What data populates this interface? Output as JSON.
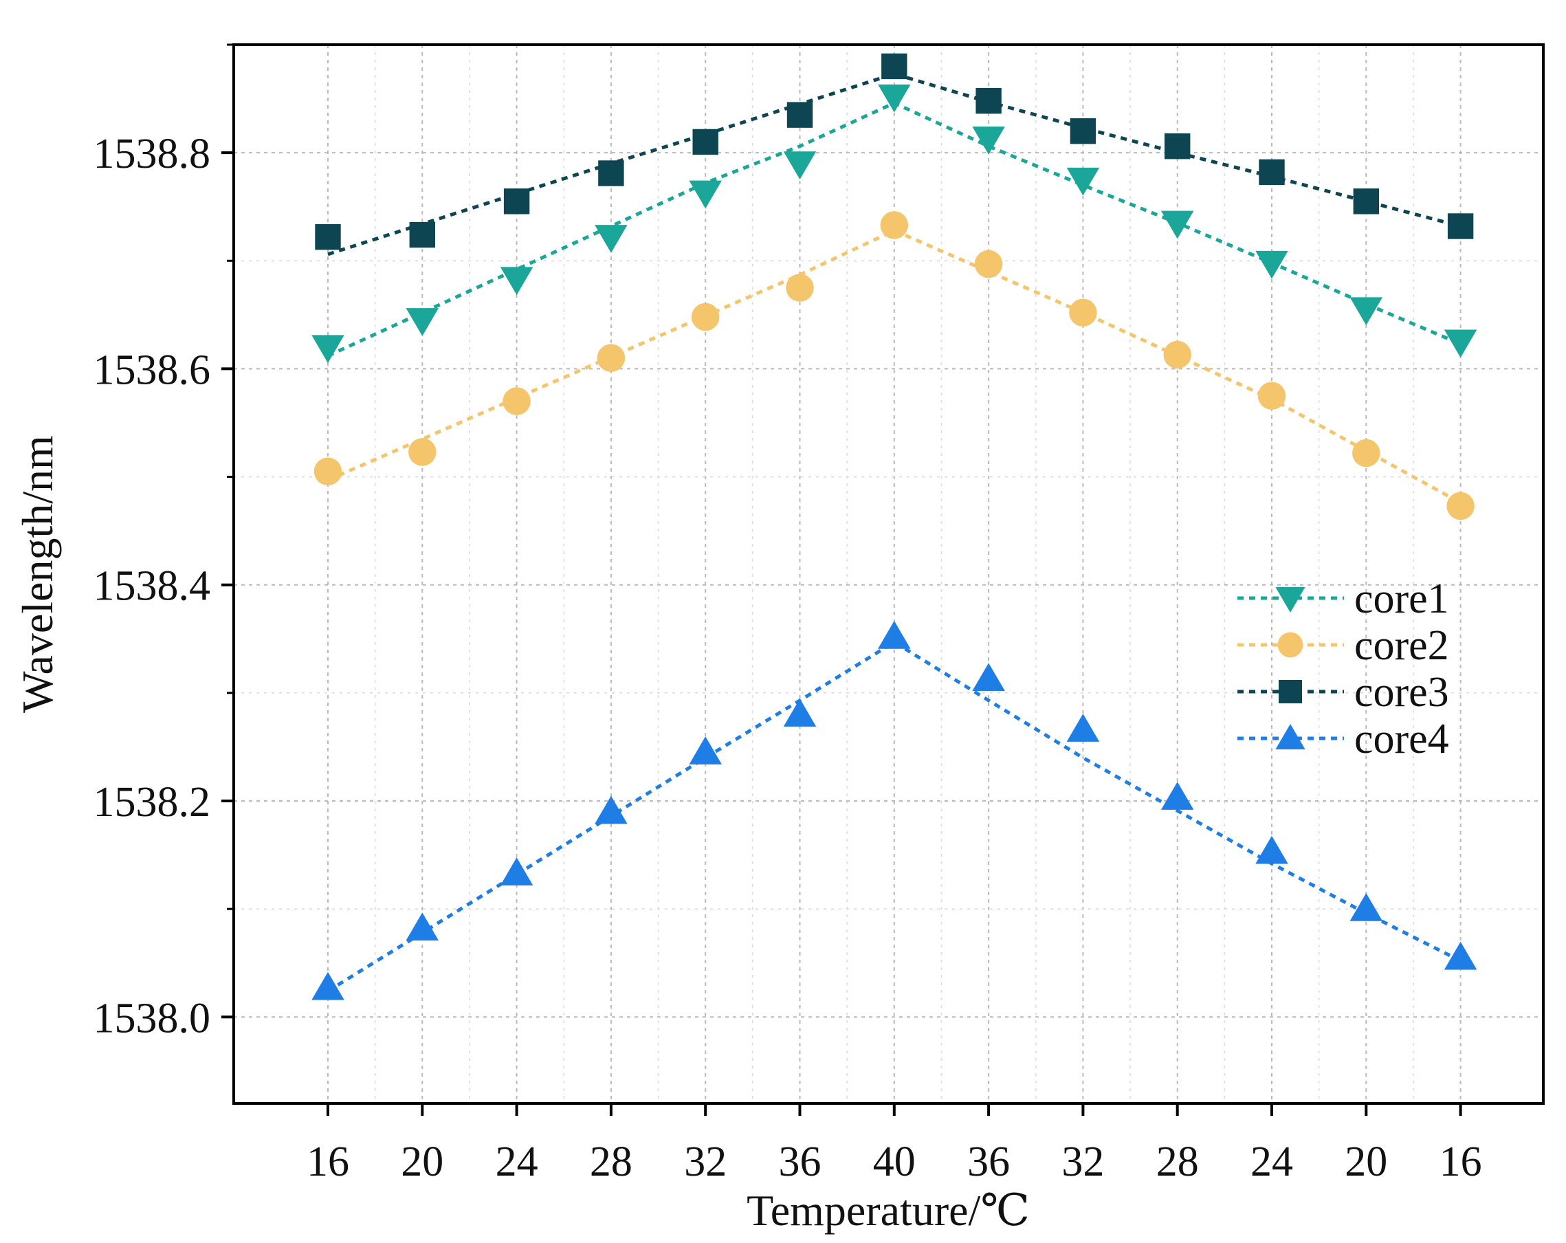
{
  "chart_data": {
    "type": "line",
    "title": "",
    "xlabel": "Temperature/℃",
    "ylabel": "Wavelength/nm",
    "categories": [
      "16",
      "20",
      "24",
      "28",
      "32",
      "36",
      "40",
      "36",
      "32",
      "28",
      "24",
      "20",
      "16"
    ],
    "ylim": [
      1537.92,
      1538.9
    ],
    "yticks": [
      1538.0,
      1538.2,
      1538.4,
      1538.6,
      1538.8
    ],
    "ytick_labels": [
      "1538.0",
      "1538.2",
      "1538.4",
      "1538.6",
      "1538.8"
    ],
    "grid": true,
    "legend_position": "right-middle",
    "series": [
      {
        "name": "core1",
        "marker": "triangle-down",
        "color": "#1aa79a",
        "values": [
          1538.62,
          1538.645,
          1538.683,
          1538.722,
          1538.763,
          1538.79,
          1538.852,
          1538.813,
          1538.775,
          1538.735,
          1538.698,
          1538.655,
          1538.625
        ],
        "fit": [
          1538.612,
          1538.652,
          1538.692,
          1538.732,
          1538.772,
          1538.806,
          1538.846,
          1538.806,
          1538.77,
          1538.735,
          1538.698,
          1538.66,
          1538.623
        ]
      },
      {
        "name": "core2",
        "marker": "circle",
        "color": "#f5c56b",
        "values": [
          1538.505,
          1538.523,
          1538.57,
          1538.61,
          1538.648,
          1538.675,
          1538.733,
          1538.697,
          1538.652,
          1538.613,
          1538.575,
          1538.522,
          1538.473
        ],
        "fit": [
          1538.497,
          1538.535,
          1538.573,
          1538.611,
          1538.649,
          1538.687,
          1538.728,
          1538.69,
          1538.652,
          1538.612,
          1538.572,
          1538.524,
          1538.476
        ]
      },
      {
        "name": "core3",
        "marker": "square",
        "color": "#0d4652",
        "values": [
          1538.722,
          1538.724,
          1538.755,
          1538.781,
          1538.81,
          1538.835,
          1538.88,
          1538.848,
          1538.82,
          1538.806,
          1538.782,
          1538.755,
          1538.732
        ],
        "fit": [
          1538.706,
          1538.734,
          1538.762,
          1538.79,
          1538.817,
          1538.845,
          1538.873,
          1538.847,
          1538.823,
          1538.8,
          1538.778,
          1538.755,
          1538.732
        ]
      },
      {
        "name": "core4",
        "marker": "triangle-up",
        "color": "#1f7ee6",
        "values": [
          1538.027,
          1538.082,
          1538.133,
          1538.19,
          1538.245,
          1538.28,
          1538.352,
          1538.313,
          1538.266,
          1538.203,
          1538.153,
          1538.1,
          1538.055
        ],
        "fit": [
          1538.024,
          1538.078,
          1538.132,
          1538.186,
          1538.24,
          1538.293,
          1538.347,
          1538.293,
          1538.24,
          1538.191,
          1538.142,
          1538.096,
          1538.052
        ]
      }
    ]
  }
}
